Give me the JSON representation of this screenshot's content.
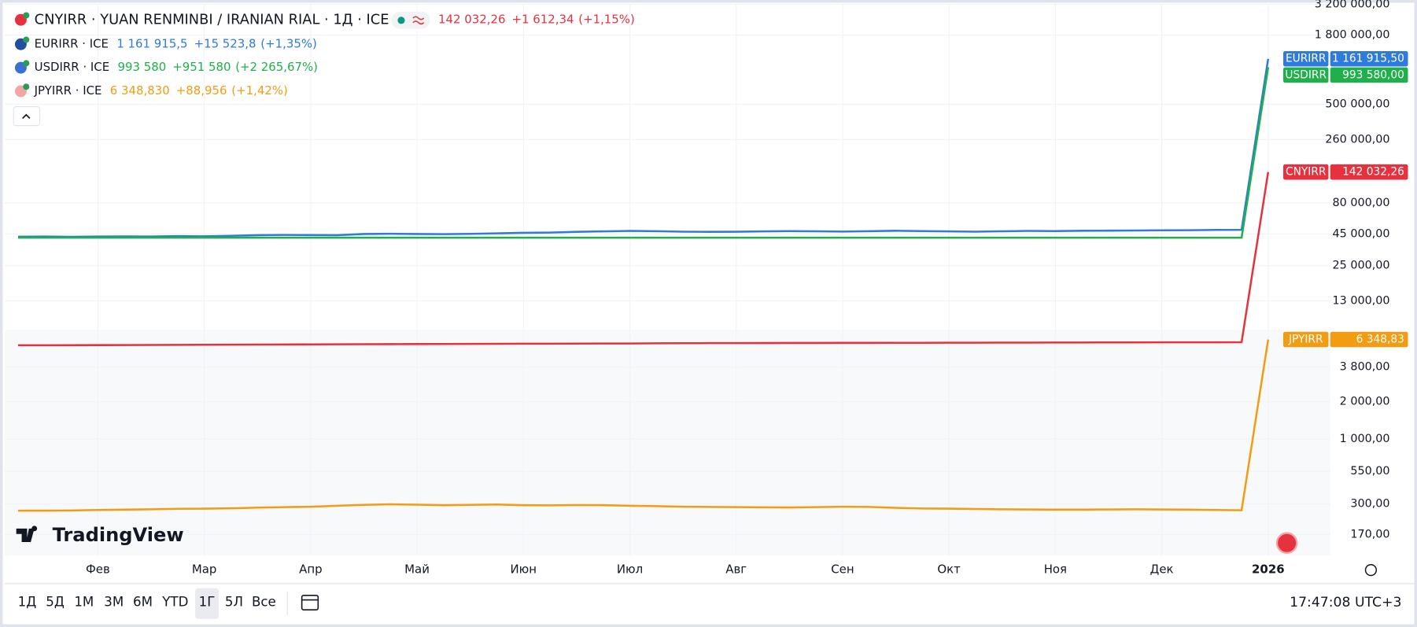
{
  "chart_data": {
    "type": "line",
    "title": "CNYIRR · YUAN RENMINBI / IRANIAN RIAL · 1Д · ICE",
    "log_scale": true,
    "grid": true,
    "categories": [
      null,
      null,
      null,
      "Фев",
      null,
      null,
      null,
      "Мар",
      null,
      null,
      null,
      "Апр",
      null,
      null,
      null,
      "Май",
      null,
      null,
      null,
      "Июн",
      null,
      null,
      null,
      "Июл",
      null,
      null,
      null,
      "Авг",
      null,
      null,
      null,
      "Сен",
      null,
      null,
      null,
      "Окт",
      null,
      null,
      null,
      "Ноя",
      null,
      null,
      null,
      "Дек",
      null,
      null,
      null,
      "2026"
    ],
    "ylim": [
      115,
      3460000
    ],
    "yticks": [
      {
        "value": 3200000,
        "label": "3 200 000,00"
      },
      {
        "value": 1800000,
        "label": "1 800 000,00"
      },
      {
        "value": 500000,
        "label": "500 000,00"
      },
      {
        "value": 260000,
        "label": "260 000,00"
      },
      {
        "value": 80000,
        "label": "80 000,00"
      },
      {
        "value": 45000,
        "label": "45 000,00"
      },
      {
        "value": 25000,
        "label": "25 000,00"
      },
      {
        "value": 13000,
        "label": "13 000,00"
      },
      {
        "value": 3800,
        "label": "3 800,00"
      },
      {
        "value": 2000,
        "label": "2 000,00"
      },
      {
        "value": 1000,
        "label": "1 000,00"
      },
      {
        "value": 550,
        "label": "550,00"
      },
      {
        "value": 300,
        "label": "300,00"
      },
      {
        "value": 170,
        "label": "170,00"
      }
    ],
    "series": [
      {
        "name": "CNYIRR",
        "color": "#e5323e",
        "last_label": "142 032,26",
        "change": "+1 612,34",
        "change_pct": "(+1,15%)",
        "tag_label": "142 032,26",
        "values": [
          5700,
          5700,
          5710,
          5720,
          5730,
          5740,
          5750,
          5760,
          5770,
          5780,
          5790,
          5800,
          5810,
          5820,
          5830,
          5840,
          5850,
          5860,
          5870,
          5880,
          5880,
          5890,
          5900,
          5900,
          5910,
          5920,
          5930,
          5930,
          5940,
          5950,
          5950,
          5960,
          5960,
          5970,
          5970,
          5980,
          5980,
          5990,
          5990,
          6000,
          6000,
          6010,
          6010,
          6020,
          6020,
          6030,
          6040,
          142032.26
        ]
      },
      {
        "name": "EURIRR",
        "legend_label": "EURIRR · ICE",
        "color": "#2f7bdc",
        "last_label": "1 161 915,5",
        "change": "+15 523,8",
        "change_pct": "(+1,35%)",
        "tag_label": "1 161 915,50",
        "values": [
          42800,
          42900,
          42700,
          42900,
          43000,
          42900,
          43200,
          43100,
          43500,
          44000,
          44200,
          44100,
          44000,
          45000,
          45200,
          45000,
          44800,
          45100,
          45500,
          46000,
          46200,
          46800,
          47200,
          47600,
          47400,
          47000,
          46800,
          46900,
          47200,
          47500,
          47300,
          47100,
          47400,
          47800,
          47500,
          47200,
          47000,
          47300,
          47600,
          47500,
          47800,
          47900,
          48000,
          48200,
          48300,
          48500,
          48600,
          1161915.5
        ]
      },
      {
        "name": "USDIRR",
        "legend_label": "USDIRR · ICE",
        "color": "#1fb04c",
        "last_label": "993 580",
        "change": "+951 580",
        "change_pct": "(+2 265,67%)",
        "tag_label": "993 580,00",
        "values": [
          42000,
          42000,
          42000,
          42000,
          42000,
          42000,
          42000,
          42000,
          42000,
          42000,
          42000,
          42000,
          42000,
          42000,
          42000,
          42000,
          42000,
          42000,
          42000,
          42000,
          42000,
          42000,
          42000,
          42000,
          42000,
          42000,
          42000,
          42000,
          42000,
          42000,
          42000,
          42000,
          42000,
          42000,
          42000,
          42000,
          42000,
          42000,
          42000,
          42000,
          42000,
          42000,
          42000,
          42000,
          42000,
          42000,
          42000,
          993580
        ]
      },
      {
        "name": "JPYIRR",
        "legend_label": "JPYIRR · ICE",
        "color": "#f39c12",
        "last_label": "6 348,830",
        "change": "+88,956",
        "change_pct": "(+1,42%)",
        "tag_label": "6 348,83",
        "values": [
          265,
          265,
          266,
          268,
          270,
          272,
          274,
          275,
          277,
          280,
          283,
          285,
          290,
          295,
          298,
          296,
          293,
          295,
          297,
          293,
          292,
          294,
          293,
          290,
          288,
          285,
          284,
          283,
          282,
          281,
          283,
          285,
          284,
          279,
          276,
          275,
          273,
          272,
          271,
          270,
          270,
          271,
          272,
          271,
          270,
          268,
          267,
          6348.83
        ]
      }
    ]
  },
  "branding": "TradingView",
  "toolbar": {
    "ranges": [
      "1Д",
      "5Д",
      "1М",
      "3М",
      "6М",
      "YTD",
      "1Г",
      "5Л",
      "Все"
    ],
    "selected": 6,
    "clock": "17:47:08 UTC+3"
  }
}
